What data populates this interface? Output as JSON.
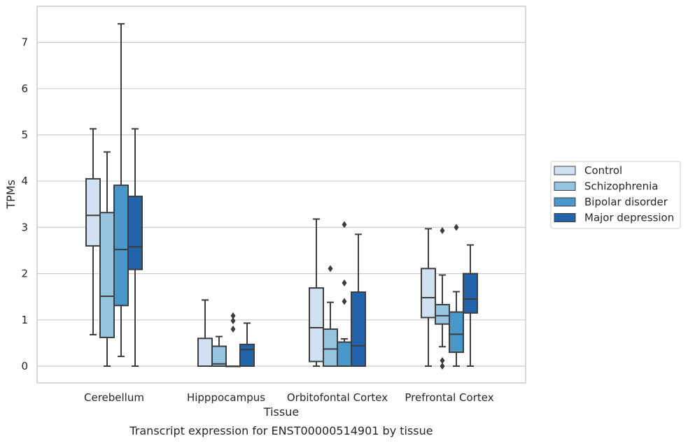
{
  "chart_data": {
    "type": "boxplot",
    "title": "",
    "caption": "Transcript expression for ENST00000514901 by tissue",
    "xlabel": "Tissue",
    "ylabel": "TPMs",
    "ylim": [
      -0.35,
      7.75
    ],
    "yticks": [
      0,
      1,
      2,
      3,
      4,
      5,
      6,
      7
    ],
    "grid": "horizontal",
    "legend_placement": "right",
    "categories": [
      "Cerebellum",
      "Hipppocampus",
      "Orbitofontal Cortex",
      "Prefrontal Cortex"
    ],
    "series": [
      {
        "name": "Control",
        "color": "#d0e1f2",
        "boxes": [
          {
            "whislo": 0.68,
            "q1": 2.6,
            "med": 3.26,
            "q3": 4.05,
            "whishi": 5.13,
            "fliers": []
          },
          {
            "whislo": 0.0,
            "q1": 0.0,
            "med": 0.0,
            "q3": 0.6,
            "whishi": 1.43,
            "fliers": []
          },
          {
            "whislo": 0.0,
            "q1": 0.1,
            "med": 0.83,
            "q3": 1.69,
            "whishi": 3.18,
            "fliers": []
          },
          {
            "whislo": 0.0,
            "q1": 1.05,
            "med": 1.48,
            "q3": 2.11,
            "whishi": 2.97,
            "fliers": []
          }
        ]
      },
      {
        "name": "Schizophrenia",
        "color": "#94c4df",
        "boxes": [
          {
            "whislo": 0.0,
            "q1": 0.62,
            "med": 1.51,
            "q3": 3.32,
            "whishi": 4.63,
            "fliers": []
          },
          {
            "whislo": 0.0,
            "q1": 0.0,
            "med": 0.05,
            "q3": 0.43,
            "whishi": 0.64,
            "fliers": []
          },
          {
            "whislo": 0.0,
            "q1": 0.0,
            "med": 0.37,
            "q3": 0.8,
            "whishi": 1.38,
            "fliers": [
              2.11
            ]
          },
          {
            "whislo": 0.42,
            "q1": 0.91,
            "med": 1.09,
            "q3": 1.33,
            "whishi": 1.97,
            "fliers": [
              2.93,
              0.12,
              0.0
            ]
          }
        ]
      },
      {
        "name": "Bipolar disorder",
        "color": "#4a98c9",
        "boxes": [
          {
            "whislo": 0.21,
            "q1": 1.31,
            "med": 2.52,
            "q3": 3.91,
            "whishi": 7.4,
            "fliers": []
          },
          {
            "whislo": 0.0,
            "q1": 0.0,
            "med": 0.0,
            "q3": 0.0,
            "whishi": 0.0,
            "fliers": [
              0.8,
              0.98,
              1.09
            ]
          },
          {
            "whislo": 0.0,
            "q1": 0.0,
            "med": 0.0,
            "q3": 0.52,
            "whishi": 0.59,
            "fliers": [
              1.4,
              1.8,
              3.06
            ]
          },
          {
            "whislo": 0.0,
            "q1": 0.3,
            "med": 0.69,
            "q3": 1.17,
            "whishi": 1.61,
            "fliers": [
              3.0
            ]
          }
        ]
      },
      {
        "name": "Major depression",
        "color": "#2164ab",
        "boxes": [
          {
            "whislo": 0.0,
            "q1": 2.09,
            "med": 2.58,
            "q3": 3.67,
            "whishi": 5.13,
            "fliers": []
          },
          {
            "whislo": 0.0,
            "q1": 0.0,
            "med": 0.36,
            "q3": 0.47,
            "whishi": 0.93,
            "fliers": []
          },
          {
            "whislo": 0.0,
            "q1": 0.0,
            "med": 0.44,
            "q3": 1.6,
            "whishi": 2.85,
            "fliers": []
          },
          {
            "whislo": 0.0,
            "q1": 1.15,
            "med": 1.45,
            "q3": 2.0,
            "whishi": 2.62,
            "fliers": []
          }
        ]
      }
    ]
  }
}
